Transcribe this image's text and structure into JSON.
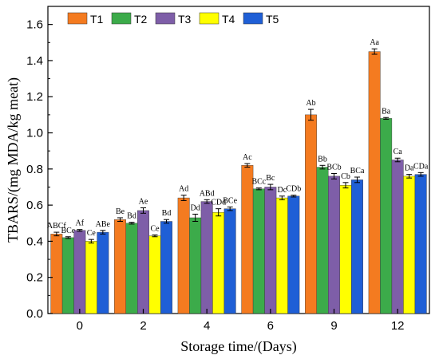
{
  "chart_data": {
    "type": "bar",
    "title": "",
    "xlabel": "Storage time/(Days)",
    "ylabel": "TBARS/(mg MDA/kg meat)",
    "ylim": [
      0.0,
      1.7
    ],
    "yticks": [
      "0.0",
      "0.2",
      "0.4",
      "0.6",
      "0.8",
      "1.0",
      "1.2",
      "1.4",
      "1.6"
    ],
    "categories": [
      "0",
      "2",
      "4",
      "6",
      "9",
      "12"
    ],
    "legend_position": "top-left",
    "grid": false,
    "series": [
      {
        "name": "T1",
        "color": "#f47b20",
        "values": [
          0.44,
          0.52,
          0.64,
          0.82,
          1.1,
          1.45
        ],
        "errors": [
          0.01,
          0.01,
          0.015,
          0.01,
          0.03,
          0.015
        ],
        "labels": [
          "ABCf",
          "Be",
          "Ad",
          "Ac",
          "Ab",
          "Aa"
        ]
      },
      {
        "name": "T2",
        "color": "#3cab4a",
        "values": [
          0.42,
          0.5,
          0.53,
          0.69,
          0.81,
          1.08
        ],
        "errors": [
          0.005,
          0.005,
          0.02,
          0.005,
          0.01,
          0.005
        ],
        "labels": [
          "BCe",
          "Bd",
          "Dd",
          "BCc",
          "Bb",
          "Ba"
        ]
      },
      {
        "name": "T3",
        "color": "#7e5ea8",
        "values": [
          0.46,
          0.57,
          0.62,
          0.7,
          0.76,
          0.85
        ],
        "errors": [
          0.005,
          0.015,
          0.01,
          0.015,
          0.015,
          0.01
        ],
        "labels": [
          "Af",
          "Ae",
          "ABd",
          "Bc",
          "BCb",
          "Ca"
        ]
      },
      {
        "name": "T4",
        "color": "#ffff00",
        "values": [
          0.4,
          0.43,
          0.56,
          0.64,
          0.71,
          0.76
        ],
        "errors": [
          0.01,
          0.005,
          0.02,
          0.01,
          0.015,
          0.01
        ],
        "labels": [
          "Ce",
          "Ce",
          "CDd",
          "Dc",
          "Cb",
          "Da"
        ]
      },
      {
        "name": "T5",
        "color": "#1f5fd6",
        "values": [
          0.45,
          0.51,
          0.58,
          0.65,
          0.74,
          0.77
        ],
        "errors": [
          0.01,
          0.01,
          0.01,
          0.005,
          0.015,
          0.01
        ],
        "labels": [
          "ABe",
          "Bd",
          "BCe",
          "CDb",
          "BCa",
          "CDa"
        ]
      }
    ]
  }
}
